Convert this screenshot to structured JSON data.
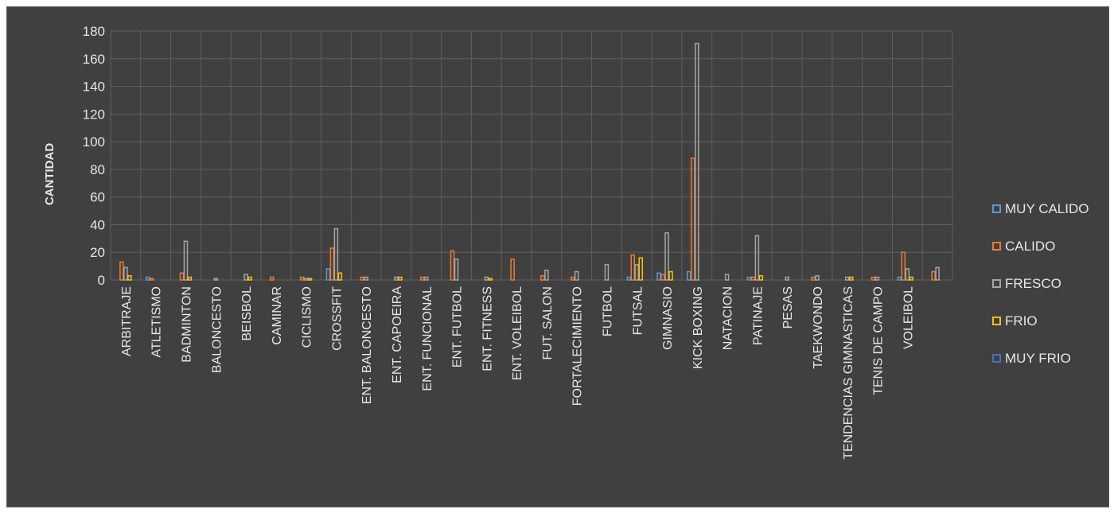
{
  "chart_data": {
    "type": "bar",
    "title": "",
    "xlabel": "",
    "ylabel": "CANTIDAD",
    "ylim": [
      0,
      180
    ],
    "yticks": [
      0,
      20,
      40,
      60,
      80,
      100,
      120,
      140,
      160,
      180
    ],
    "grid": true,
    "legend_position": "right",
    "categories": [
      "ARBITRAJE",
      "ATLETISMO",
      "BADMINTON",
      "BALONCESTO",
      "BEISBOL",
      "CAMINAR",
      "CICLISMO",
      "CROSSFIT",
      "ENT. BALONCESTO",
      "ENT. CAPOEIRA",
      "ENT. FUNCIONAL",
      "ENT. FUTBOL",
      "ENT. FITNESS",
      "ENT. VOLEIBOL",
      "FUT. SALON",
      "FORTALECIMIENTO",
      "FUTBOL",
      "FUTSAL",
      "GIMNASIO",
      "KICK BOXING",
      "NATACION",
      "PATINAJE",
      "PESAS",
      "TAEKWONDO",
      "TENDENCIAS GIMNASTICAS",
      "TENIS DE CAMPO",
      "VOLEIBOL",
      ""
    ],
    "series": [
      {
        "name": "MUY CALIDO",
        "color": "#5b9bd5",
        "values": [
          0,
          2,
          0,
          0,
          0,
          0,
          0,
          8,
          0,
          0,
          0,
          0,
          0,
          0,
          0,
          0,
          0,
          2,
          5,
          6,
          0,
          2,
          0,
          0,
          0,
          0,
          2,
          0
        ]
      },
      {
        "name": "CALIDO",
        "color": "#ed7d31",
        "values": [
          13,
          1,
          5,
          0,
          0,
          2,
          2,
          23,
          2,
          0,
          2,
          21,
          0,
          15,
          3,
          2,
          0,
          18,
          4,
          88,
          0,
          2,
          0,
          2,
          0,
          2,
          20,
          6
        ]
      },
      {
        "name": "FRESCO",
        "color": "#a5a5a5",
        "values": [
          9,
          0,
          28,
          1,
          4,
          0,
          1,
          37,
          2,
          2,
          2,
          15,
          2,
          0,
          7,
          6,
          11,
          11,
          34,
          171,
          4,
          32,
          2,
          3,
          2,
          2,
          8,
          9
        ]
      },
      {
        "name": "FRIO",
        "color": "#ffc000",
        "values": [
          3,
          0,
          2,
          0,
          2,
          0,
          1,
          5,
          0,
          2,
          0,
          0,
          1,
          0,
          0,
          0,
          0,
          16,
          6,
          0,
          0,
          3,
          0,
          0,
          2,
          0,
          2,
          0
        ]
      },
      {
        "name": "MUY FRIO",
        "color": "#4472c4",
        "values": [
          0,
          0,
          0,
          0,
          0,
          0,
          0,
          0,
          0,
          0,
          0,
          0,
          0,
          0,
          0,
          0,
          0,
          0,
          0,
          0,
          0,
          0,
          0,
          0,
          0,
          0,
          0,
          0
        ]
      }
    ]
  }
}
